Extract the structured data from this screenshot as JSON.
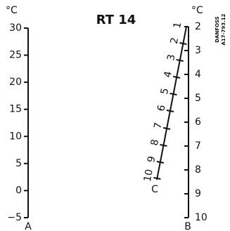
{
  "title": "RT 14",
  "left_scale": {
    "unit": "°C",
    "labels": [
      "30",
      "25",
      "20",
      "15",
      "10",
      "5",
      "0",
      "−5"
    ],
    "name": "A"
  },
  "right_scale": {
    "unit": "°C",
    "labels": [
      "2",
      "3",
      "4",
      "5",
      "6",
      "7",
      "8",
      "9",
      "10"
    ],
    "name": "B"
  },
  "diagonal_scale": {
    "labels": [
      "1",
      "2",
      "3",
      "4",
      "5",
      "6",
      "7",
      "8",
      "9",
      "10"
    ],
    "name": "C"
  },
  "note": [
    "DANFOSS",
    "A17-793.12"
  ]
}
